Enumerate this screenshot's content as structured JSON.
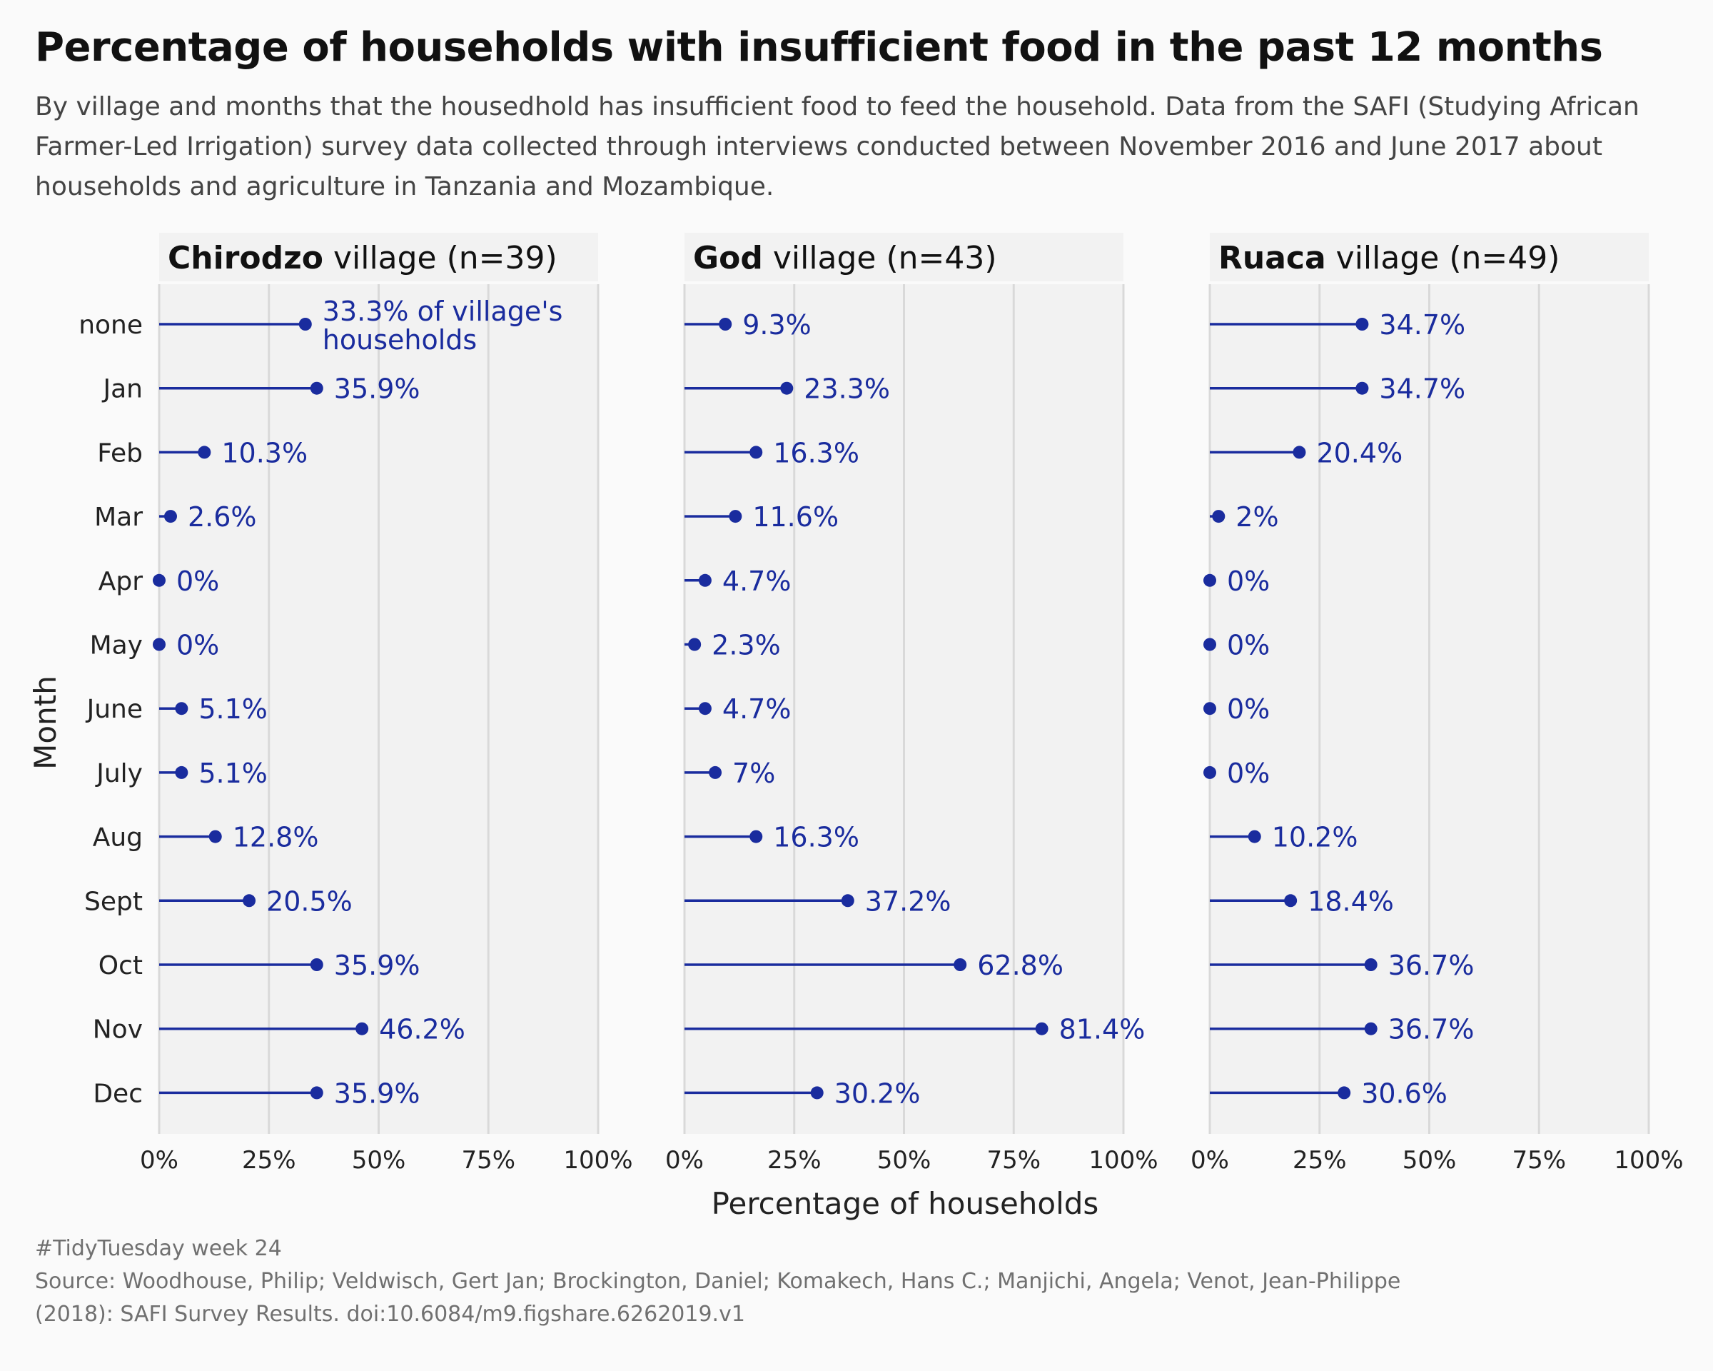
{
  "title": "Percentage of households with insufficient food in the past 12 months",
  "subtitle": "By village and months that the housedhold has insufficient food to feed the household. Data from the SAFI (Studying African Farmer-Led Irrigation) survey data collected through interviews conducted between November 2016 and June 2017 about households and agriculture in Tanzania and Mozambique.",
  "caption": {
    "line1": "#TidyTuesday week 24",
    "line2": "Source: Woodhouse, Philip; Veldwisch, Gert Jan; Brockington, Daniel; Komakech, Hans C.; Manjichi, Angela; Venot, Jean-Philippe",
    "line3": "(2018): SAFI Survey Results. doi:10.6084/m9.figshare.6262019.v1"
  },
  "colors": {
    "series": "#1a2c9e",
    "panel": "#f2f2f2",
    "grid": "#d9d9d9",
    "background": "#fafafa"
  },
  "chart_data": {
    "type": "lollipop",
    "xlabel": "Percentage of households",
    "ylabel": "Month",
    "xlim": [
      0,
      100
    ],
    "x_ticks": [
      "0%",
      "25%",
      "50%",
      "75%",
      "100%"
    ],
    "grid": true,
    "categories": [
      "none",
      "Jan",
      "Feb",
      "Mar",
      "Apr",
      "May",
      "June",
      "July",
      "Aug",
      "Sept",
      "Oct",
      "Nov",
      "Dec"
    ],
    "panels": [
      {
        "village": "Chirodzo",
        "suffix": " village (n=39)",
        "values": [
          33.3,
          35.9,
          10.3,
          2.6,
          0,
          0,
          5.1,
          5.1,
          12.8,
          20.5,
          35.9,
          46.2,
          35.9
        ],
        "labels": [
          "33.3% of village's households",
          "35.9%",
          "10.3%",
          "2.6%",
          "0%",
          "0%",
          "5.1%",
          "5.1%",
          "12.8%",
          "20.5%",
          "35.9%",
          "46.2%",
          "35.9%"
        ]
      },
      {
        "village": "God",
        "suffix": " village (n=43)",
        "values": [
          9.3,
          23.3,
          16.3,
          11.6,
          4.7,
          2.3,
          4.7,
          7,
          16.3,
          37.2,
          62.8,
          81.4,
          30.2
        ],
        "labels": [
          "9.3%",
          "23.3%",
          "16.3%",
          "11.6%",
          "4.7%",
          "2.3%",
          "4.7%",
          "7%",
          "16.3%",
          "37.2%",
          "62.8%",
          "81.4%",
          "30.2%"
        ]
      },
      {
        "village": "Ruaca",
        "suffix": " village (n=49)",
        "values": [
          34.7,
          34.7,
          20.4,
          2,
          0,
          0,
          0,
          0,
          10.2,
          18.4,
          36.7,
          36.7,
          30.6
        ],
        "labels": [
          "34.7%",
          "34.7%",
          "20.4%",
          "2%",
          "0%",
          "0%",
          "0%",
          "0%",
          "10.2%",
          "18.4%",
          "36.7%",
          "36.7%",
          "30.6%"
        ]
      }
    ]
  }
}
